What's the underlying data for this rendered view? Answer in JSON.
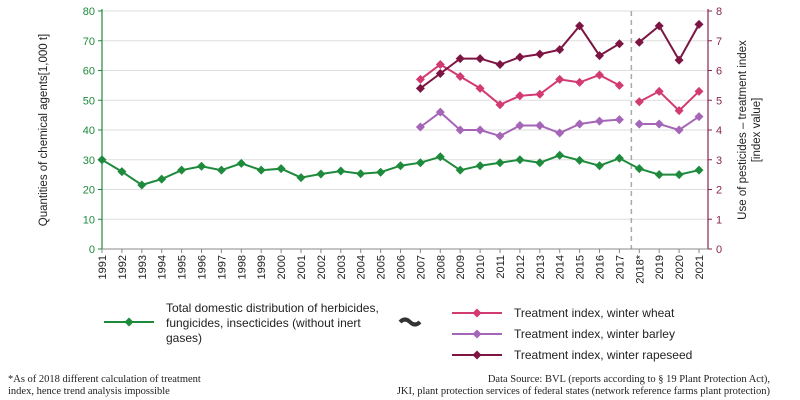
{
  "colors": {
    "total": "#1e8a3c",
    "wheat": "#d23a72",
    "barley": "#a566b8",
    "rapeseed": "#7d1543",
    "axis_left": "#1e8a3c",
    "axis_right": "#8a2450",
    "grid": "#dddddd",
    "break_line": "#aaaaaa"
  },
  "chart_data": {
    "type": "line",
    "x": [
      "1991",
      "1992",
      "1993",
      "1994",
      "1995",
      "1996",
      "1997",
      "1998",
      "1999",
      "2000",
      "2001",
      "2002",
      "2003",
      "2004",
      "2005",
      "2006",
      "2007",
      "2008",
      "2009",
      "2010",
      "2011",
      "2012",
      "2013",
      "2014",
      "2015",
      "2016",
      "2017",
      "2018*",
      "2019",
      "2020",
      "2021"
    ],
    "ylabel_left": "Quantities of chemical agents[1,000 t]",
    "ylabel_right_line1": "Use of pesticides – treatment index",
    "ylabel_right_line2": "[index value]",
    "ylim_left": [
      0,
      80
    ],
    "yticks_left": [
      0,
      10,
      20,
      30,
      40,
      50,
      60,
      70,
      80
    ],
    "ylim_right": [
      0,
      8
    ],
    "yticks_right": [
      0,
      1,
      2,
      3,
      4,
      5,
      6,
      7,
      8
    ],
    "series": [
      {
        "name": "Total domestic distribution of herbicides, fungicides, insecticides (without inert gases)",
        "legend_lines": [
          "Total domestic distribution of herbicides,",
          "fungicides, insecticides (without inert",
          "gases)"
        ],
        "axis": "left",
        "color_key": "total",
        "values": [
          30.0,
          26.0,
          21.5,
          23.5,
          26.5,
          27.8,
          26.5,
          28.8,
          26.5,
          27.0,
          24.0,
          25.2,
          26.2,
          25.3,
          25.8,
          28.0,
          29.0,
          31.0,
          26.5,
          28.0,
          29.0,
          30.0,
          29.0,
          31.5,
          29.8,
          28.0,
          30.5,
          27.0,
          25.0,
          25.0,
          26.5
        ]
      },
      {
        "name": "Treatment index, winter wheat",
        "legend_lines": [
          "Treatment index, winter wheat"
        ],
        "axis": "right",
        "color_key": "wheat",
        "values": [
          null,
          null,
          null,
          null,
          null,
          null,
          null,
          null,
          null,
          null,
          null,
          null,
          null,
          null,
          null,
          null,
          5.7,
          6.2,
          5.8,
          5.4,
          4.85,
          5.15,
          5.2,
          5.7,
          5.6,
          5.85,
          5.5,
          4.95,
          5.3,
          4.65,
          5.3
        ]
      },
      {
        "name": "Treatment index, winter barley",
        "legend_lines": [
          "Treatment index, winter barley"
        ],
        "axis": "right",
        "color_key": "barley",
        "values": [
          null,
          null,
          null,
          null,
          null,
          null,
          null,
          null,
          null,
          null,
          null,
          null,
          null,
          null,
          null,
          null,
          4.1,
          4.6,
          4.0,
          4.0,
          3.8,
          4.15,
          4.15,
          3.9,
          4.2,
          4.3,
          4.35,
          4.2,
          4.2,
          4.0,
          4.45
        ]
      },
      {
        "name": "Treatment index, winter rapeseed",
        "legend_lines": [
          "Treatment index, winter rapeseed"
        ],
        "axis": "right",
        "color_key": "rapeseed",
        "values": [
          null,
          null,
          null,
          null,
          null,
          null,
          null,
          null,
          null,
          null,
          null,
          null,
          null,
          null,
          null,
          null,
          5.4,
          5.9,
          6.4,
          6.4,
          6.2,
          6.45,
          6.55,
          6.7,
          7.5,
          6.5,
          6.9,
          6.95,
          7.5,
          6.35,
          7.55
        ]
      }
    ],
    "break_between": [
      "2017",
      "2018*"
    ],
    "legend_placement": "bottom"
  },
  "footnote": {
    "line1": "*As of 2018 different calculation of treatment",
    "line2": "index, hence trend analysis impossible"
  },
  "source": {
    "line1": "Data Source: BVL (reports according to § 19 Plant Protection Act),",
    "line2": "JKI, plant protection services of federal states (network reference farms plant protection)"
  }
}
